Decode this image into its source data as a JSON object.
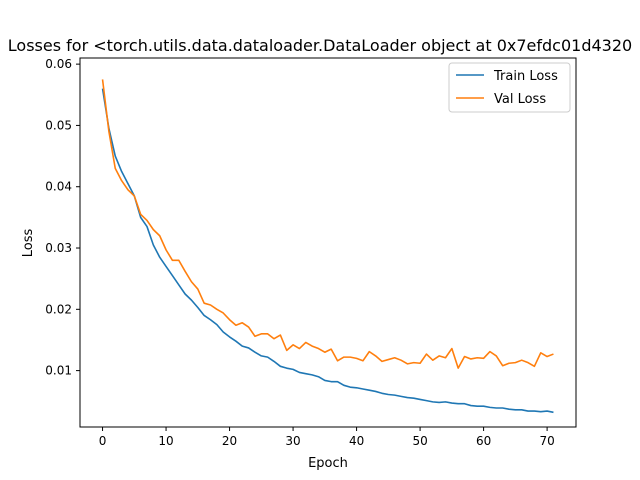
{
  "chart_data": {
    "type": "line",
    "title": "Losses for <torch.utils.data.dataloader.DataLoader object at 0x7efdc01d4320",
    "xlabel": "Epoch",
    "ylabel": "Loss",
    "xlim": [
      -3.55,
      74.55
    ],
    "ylim": [
      0.0008,
      0.061
    ],
    "xticks": [
      0,
      10,
      20,
      30,
      40,
      50,
      60,
      70
    ],
    "yticks": [
      0.01,
      0.02,
      0.03,
      0.04,
      0.05,
      0.06
    ],
    "ytick_labels": [
      "0.01",
      "0.02",
      "0.03",
      "0.04",
      "0.05",
      "0.06"
    ],
    "grid": false,
    "legend_position": "top-right",
    "series": [
      {
        "name": "Train Loss",
        "color": "#1f77b4",
        "values": [
          0.056,
          0.0495,
          0.045,
          0.0425,
          0.0405,
          0.0385,
          0.035,
          0.0335,
          0.0305,
          0.0285,
          0.027,
          0.0255,
          0.024,
          0.0225,
          0.0215,
          0.0203,
          0.019,
          0.0183,
          0.0175,
          0.0163,
          0.0155,
          0.0148,
          0.014,
          0.0137,
          0.013,
          0.0124,
          0.0122,
          0.0115,
          0.0107,
          0.0104,
          0.0102,
          0.0097,
          0.0095,
          0.0093,
          0.009,
          0.0084,
          0.0082,
          0.0082,
          0.0076,
          0.0073,
          0.0072,
          0.007,
          0.0068,
          0.0066,
          0.0063,
          0.0061,
          0.006,
          0.0058,
          0.0056,
          0.0055,
          0.0053,
          0.0051,
          0.0049,
          0.0048,
          0.0049,
          0.0047,
          0.0046,
          0.0046,
          0.0043,
          0.0042,
          0.0042,
          0.004,
          0.0039,
          0.0039,
          0.0037,
          0.0036,
          0.0036,
          0.0034,
          0.0034,
          0.0033,
          0.0034,
          0.0032
        ]
      },
      {
        "name": "Val Loss",
        "color": "#ff7f0e",
        "values": [
          0.0575,
          0.049,
          0.043,
          0.041,
          0.0395,
          0.0385,
          0.0355,
          0.0345,
          0.033,
          0.032,
          0.0297,
          0.028,
          0.028,
          0.0262,
          0.0245,
          0.0233,
          0.021,
          0.0207,
          0.02,
          0.0194,
          0.0183,
          0.0174,
          0.0178,
          0.0171,
          0.0156,
          0.016,
          0.016,
          0.0152,
          0.0158,
          0.0133,
          0.0142,
          0.0136,
          0.0146,
          0.014,
          0.0136,
          0.013,
          0.0135,
          0.0116,
          0.0122,
          0.0122,
          0.012,
          0.0116,
          0.0131,
          0.0124,
          0.0115,
          0.0118,
          0.0121,
          0.0117,
          0.0111,
          0.0113,
          0.0112,
          0.0127,
          0.0117,
          0.0124,
          0.0121,
          0.0136,
          0.0104,
          0.0123,
          0.0119,
          0.0121,
          0.012,
          0.0131,
          0.0124,
          0.0108,
          0.0112,
          0.0113,
          0.0117,
          0.0113,
          0.0107,
          0.0129,
          0.0123,
          0.0127
        ]
      }
    ]
  }
}
